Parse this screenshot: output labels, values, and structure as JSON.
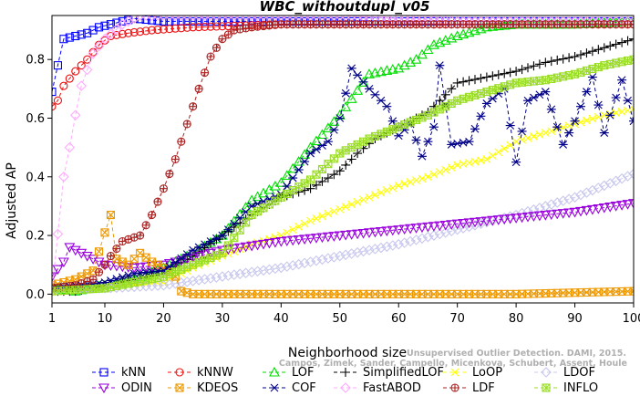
{
  "chart_data": {
    "type": "line",
    "title": "WBC_withoutdupl_v05",
    "xlabel": "Neighborhood size",
    "ylabel": "Adjusted AP",
    "xlim": [
      1,
      100
    ],
    "ylim": [
      -0.03,
      0.95
    ],
    "xticks": [
      1,
      10,
      20,
      30,
      40,
      50,
      60,
      70,
      80,
      90,
      100
    ],
    "yticks": [
      0.0,
      0.2,
      0.4,
      0.6,
      0.8
    ],
    "ytick_labels": [
      "0.0",
      "0.2",
      "0.4",
      "0.6",
      "0.8"
    ],
    "grid": false,
    "legend_position": "bottom",
    "attribution_lines": [
      "Unsupervised Outlier Detection. DAMI, 2015.",
      "Campos, Zimek, Sander, Campello, Micenkova, Schubert, Assent, Houle"
    ],
    "series": [
      {
        "name": "kNN",
        "color": "#0000ff",
        "marker": "square",
        "points": [
          [
            1,
            0.69
          ],
          [
            2,
            0.78
          ],
          [
            3,
            0.87
          ],
          [
            5,
            0.88
          ],
          [
            7,
            0.89
          ],
          [
            9,
            0.91
          ],
          [
            11,
            0.92
          ],
          [
            13,
            0.93
          ],
          [
            15,
            0.94
          ],
          [
            20,
            0.93
          ],
          [
            30,
            0.93
          ],
          [
            50,
            0.93
          ],
          [
            70,
            0.93
          ],
          [
            100,
            0.93
          ]
        ]
      },
      {
        "name": "kNNW",
        "color": "#ee1111",
        "marker": "circle",
        "points": [
          [
            1,
            0.64
          ],
          [
            2,
            0.66
          ],
          [
            3,
            0.71
          ],
          [
            5,
            0.76
          ],
          [
            7,
            0.8
          ],
          [
            9,
            0.85
          ],
          [
            11,
            0.88
          ],
          [
            14,
            0.89
          ],
          [
            18,
            0.9
          ],
          [
            25,
            0.91
          ],
          [
            40,
            0.92
          ],
          [
            70,
            0.92
          ],
          [
            100,
            0.92
          ]
        ]
      },
      {
        "name": "LOF",
        "color": "#00dd00",
        "marker": "triangle-up",
        "points": [
          [
            1,
            0.02
          ],
          [
            5,
            0.01
          ],
          [
            10,
            0.03
          ],
          [
            15,
            0.05
          ],
          [
            20,
            0.09
          ],
          [
            25,
            0.14
          ],
          [
            30,
            0.2
          ],
          [
            35,
            0.32
          ],
          [
            40,
            0.38
          ],
          [
            45,
            0.5
          ],
          [
            50,
            0.61
          ],
          [
            55,
            0.75
          ],
          [
            60,
            0.77
          ],
          [
            63,
            0.8
          ],
          [
            66,
            0.85
          ],
          [
            70,
            0.88
          ],
          [
            75,
            0.91
          ],
          [
            80,
            0.92
          ],
          [
            90,
            0.92
          ],
          [
            100,
            0.93
          ]
        ]
      },
      {
        "name": "SimplifiedLOF",
        "color": "#000000",
        "marker": "plus",
        "points": [
          [
            1,
            0.01
          ],
          [
            5,
            0.01
          ],
          [
            10,
            0.03
          ],
          [
            15,
            0.05
          ],
          [
            20,
            0.07
          ],
          [
            25,
            0.13
          ],
          [
            30,
            0.2
          ],
          [
            35,
            0.27
          ],
          [
            40,
            0.33
          ],
          [
            45,
            0.36
          ],
          [
            50,
            0.42
          ],
          [
            53,
            0.48
          ],
          [
            56,
            0.53
          ],
          [
            60,
            0.57
          ],
          [
            65,
            0.62
          ],
          [
            70,
            0.72
          ],
          [
            75,
            0.74
          ],
          [
            80,
            0.76
          ],
          [
            85,
            0.79
          ],
          [
            90,
            0.81
          ],
          [
            95,
            0.84
          ],
          [
            100,
            0.87
          ]
        ]
      },
      {
        "name": "LoOP",
        "color": "#ffff00",
        "marker": "x",
        "points": [
          [
            1,
            0.01
          ],
          [
            10,
            0.02
          ],
          [
            20,
            0.04
          ],
          [
            25,
            0.09
          ],
          [
            30,
            0.13
          ],
          [
            35,
            0.17
          ],
          [
            40,
            0.2
          ],
          [
            45,
            0.25
          ],
          [
            50,
            0.29
          ],
          [
            55,
            0.33
          ],
          [
            60,
            0.37
          ],
          [
            65,
            0.4
          ],
          [
            70,
            0.44
          ],
          [
            75,
            0.46
          ],
          [
            80,
            0.52
          ],
          [
            85,
            0.55
          ],
          [
            90,
            0.58
          ],
          [
            95,
            0.61
          ],
          [
            100,
            0.63
          ]
        ]
      },
      {
        "name": "LDOF",
        "color": "#c8c8ee",
        "marker": "diamond",
        "points": [
          [
            1,
            0.02
          ],
          [
            10,
            0.02
          ],
          [
            20,
            0.03
          ],
          [
            30,
            0.06
          ],
          [
            40,
            0.09
          ],
          [
            50,
            0.13
          ],
          [
            60,
            0.17
          ],
          [
            70,
            0.22
          ],
          [
            80,
            0.27
          ],
          [
            90,
            0.33
          ],
          [
            95,
            0.37
          ],
          [
            100,
            0.41
          ]
        ]
      },
      {
        "name": "ODIN",
        "color": "#9900dd",
        "marker": "triangle-down",
        "points": [
          [
            1,
            0.06
          ],
          [
            3,
            0.11
          ],
          [
            4,
            0.16
          ],
          [
            6,
            0.14
          ],
          [
            8,
            0.12
          ],
          [
            10,
            0.1
          ],
          [
            15,
            0.09
          ],
          [
            20,
            0.1
          ],
          [
            30,
            0.15
          ],
          [
            40,
            0.18
          ],
          [
            50,
            0.2
          ],
          [
            60,
            0.22
          ],
          [
            70,
            0.24
          ],
          [
            80,
            0.26
          ],
          [
            90,
            0.28
          ],
          [
            100,
            0.31
          ]
        ]
      },
      {
        "name": "KDEOS",
        "color": "#ee9900",
        "marker": "square-x",
        "points": [
          [
            1,
            0.03
          ],
          [
            5,
            0.05
          ],
          [
            8,
            0.08
          ],
          [
            10,
            0.21
          ],
          [
            11,
            0.27
          ],
          [
            12,
            0.12
          ],
          [
            14,
            0.1
          ],
          [
            16,
            0.14
          ],
          [
            18,
            0.11
          ],
          [
            20,
            0.09
          ],
          [
            22,
            0.06
          ],
          [
            23,
            0.01
          ],
          [
            25,
            0.0
          ],
          [
            40,
            0.0
          ],
          [
            60,
            0.0
          ],
          [
            80,
            0.0
          ],
          [
            100,
            0.01
          ]
        ]
      },
      {
        "name": "COF",
        "color": "#000088",
        "marker": "asterisk",
        "points": [
          [
            1,
            0.02
          ],
          [
            10,
            0.04
          ],
          [
            15,
            0.07
          ],
          [
            20,
            0.08
          ],
          [
            25,
            0.15
          ],
          [
            30,
            0.2
          ],
          [
            35,
            0.3
          ],
          [
            40,
            0.34
          ],
          [
            45,
            0.48
          ],
          [
            48,
            0.52
          ],
          [
            50,
            0.6
          ],
          [
            52,
            0.77
          ],
          [
            55,
            0.7
          ],
          [
            58,
            0.64
          ],
          [
            60,
            0.54
          ],
          [
            62,
            0.58
          ],
          [
            64,
            0.47
          ],
          [
            66,
            0.57
          ],
          [
            67,
            0.78
          ],
          [
            69,
            0.51
          ],
          [
            72,
            0.52
          ],
          [
            75,
            0.65
          ],
          [
            78,
            0.7
          ],
          [
            80,
            0.45
          ],
          [
            82,
            0.66
          ],
          [
            85,
            0.69
          ],
          [
            88,
            0.51
          ],
          [
            90,
            0.59
          ],
          [
            93,
            0.74
          ],
          [
            95,
            0.55
          ],
          [
            98,
            0.73
          ],
          [
            100,
            0.59
          ]
        ]
      },
      {
        "name": "FastABOD",
        "color": "#ffaaff",
        "marker": "diamond",
        "points": [
          [
            1,
            0.01
          ],
          [
            3,
            0.4
          ],
          [
            4,
            0.5
          ],
          [
            5,
            0.61
          ],
          [
            6,
            0.71
          ],
          [
            8,
            0.82
          ],
          [
            10,
            0.87
          ],
          [
            13,
            0.92
          ],
          [
            16,
            0.95
          ],
          [
            25,
            0.95
          ],
          [
            50,
            0.95
          ],
          [
            60,
            0.94
          ],
          [
            70,
            0.93
          ],
          [
            100,
            0.93
          ]
        ]
      },
      {
        "name": "LDF",
        "color": "#aa2222",
        "marker": "circle-plus",
        "points": [
          [
            1,
            0.02
          ],
          [
            5,
            0.03
          ],
          [
            8,
            0.05
          ],
          [
            10,
            0.1
          ],
          [
            11,
            0.13
          ],
          [
            13,
            0.18
          ],
          [
            16,
            0.2
          ],
          [
            18,
            0.27
          ],
          [
            20,
            0.36
          ],
          [
            22,
            0.46
          ],
          [
            24,
            0.58
          ],
          [
            26,
            0.7
          ],
          [
            28,
            0.81
          ],
          [
            30,
            0.87
          ],
          [
            32,
            0.9
          ],
          [
            35,
            0.91
          ],
          [
            40,
            0.92
          ],
          [
            60,
            0.92
          ],
          [
            100,
            0.92
          ]
        ]
      },
      {
        "name": "INFLO",
        "color": "#99dd22",
        "marker": "box-x",
        "points": [
          [
            1,
            0.01
          ],
          [
            10,
            0.02
          ],
          [
            20,
            0.06
          ],
          [
            30,
            0.14
          ],
          [
            35,
            0.27
          ],
          [
            40,
            0.33
          ],
          [
            45,
            0.39
          ],
          [
            50,
            0.48
          ],
          [
            55,
            0.53
          ],
          [
            60,
            0.57
          ],
          [
            65,
            0.61
          ],
          [
            70,
            0.66
          ],
          [
            75,
            0.69
          ],
          [
            80,
            0.72
          ],
          [
            85,
            0.73
          ],
          [
            90,
            0.75
          ],
          [
            95,
            0.78
          ],
          [
            100,
            0.8
          ]
        ]
      }
    ]
  }
}
